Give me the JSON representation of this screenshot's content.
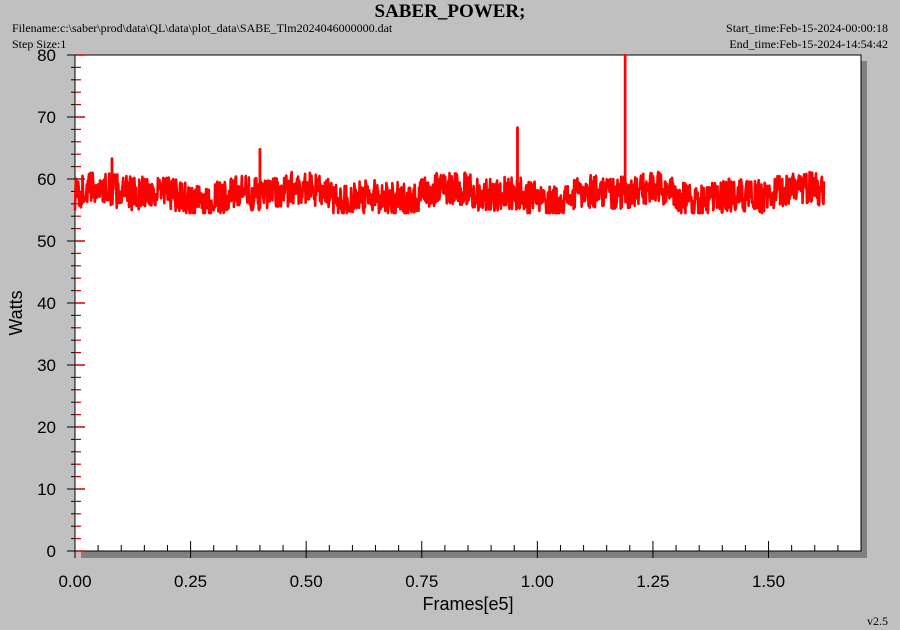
{
  "header": {
    "title": "SABER_POWER;",
    "filename": "Filename:c:\\saber\\prod\\data\\QL\\data\\plot_data\\SABE_Tlm2024046000000.dat",
    "step_size": "Step Size:1",
    "start_time": "Start_time:Feb-15-2024-00:00:18",
    "end_time": "End_time:Feb-15-2024-14:54:42"
  },
  "footer": {
    "version": "v2.5"
  },
  "colors": {
    "series": "#ff0000",
    "background": "#c0c0c0",
    "plot_area": "#ffffff",
    "axis_ticks": "#cc0000"
  },
  "chart_data": {
    "type": "line",
    "title": "SABER_POWER;",
    "xlabel": "Frames[e5]",
    "ylabel": "Watts",
    "xlim": [
      0,
      1.7
    ],
    "ylim": [
      0,
      80
    ],
    "x_ticks": [
      "0.00",
      "0.25",
      "0.50",
      "0.75",
      "1.00",
      "1.25",
      "1.50"
    ],
    "y_ticks": [
      "0",
      "10",
      "20",
      "30",
      "40",
      "50",
      "60",
      "70",
      "80"
    ],
    "grid": false,
    "legend": "none",
    "series": [
      {
        "color": "#ff0000",
        "x_start": 0.0,
        "x_end": 1.62,
        "baseline_mean": 57.5,
        "noise_range": [
          54.5,
          61.5
        ],
        "spikes": [
          {
            "x": 0.08,
            "y": 63.3
          },
          {
            "x": 0.4,
            "y": 64.8
          },
          {
            "x": 0.957,
            "y": 68.3
          },
          {
            "x": 1.19,
            "y": 80
          }
        ]
      }
    ]
  }
}
